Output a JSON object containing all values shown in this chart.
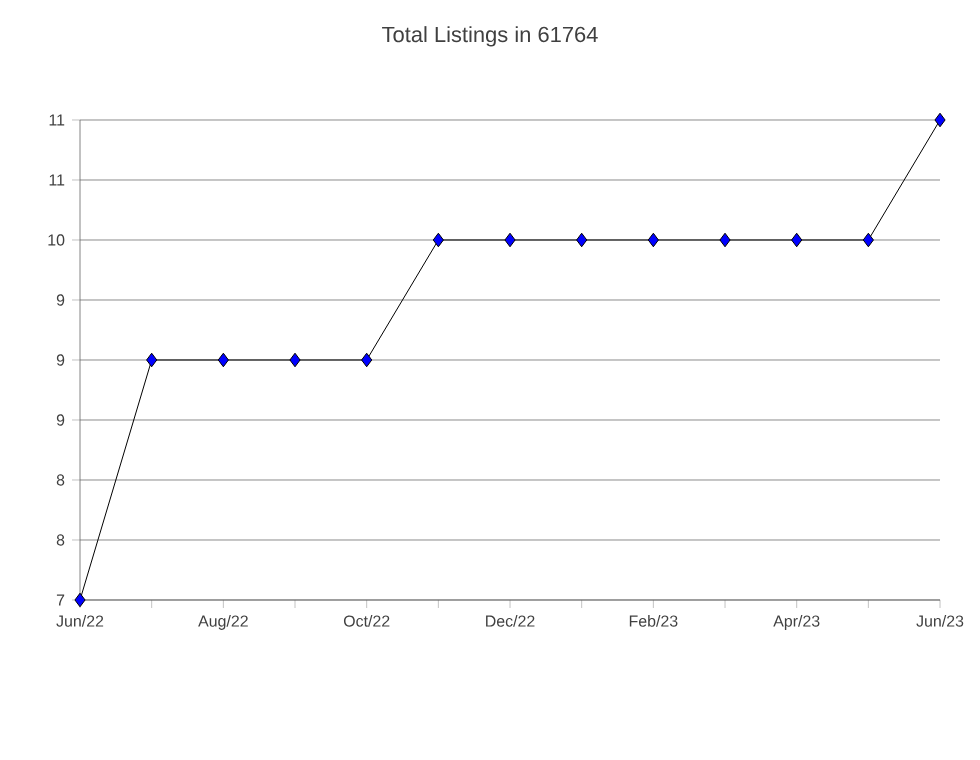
{
  "chart_data": {
    "type": "line",
    "title": "Total Listings in 61764",
    "x": [
      "2022-06",
      "2022-07",
      "2022-08",
      "2022-09",
      "2022-10",
      "2022-11",
      "2022-12",
      "2023-01",
      "2023-02",
      "2023-03",
      "2023-04",
      "2023-05",
      "2023-06"
    ],
    "series": [
      {
        "color": "#0000ff",
        "values": [
          7,
          9,
          9,
          9,
          9,
          10,
          10,
          10,
          10,
          10,
          10,
          10,
          11
        ]
      }
    ],
    "xlim": [
      "2022-06",
      "2023-06"
    ],
    "xticks": [
      {
        "value": "2022-06",
        "label": "Jun/22"
      },
      {
        "value": "2022-07",
        "label": null
      },
      {
        "value": "2022-08",
        "label": "Aug/22"
      },
      {
        "value": "2022-09",
        "label": null
      },
      {
        "value": "2022-10",
        "label": "Oct/22"
      },
      {
        "value": "2022-11",
        "label": null
      },
      {
        "value": "2022-12",
        "label": "Dec/22"
      },
      {
        "value": "2023-01",
        "label": null
      },
      {
        "value": "2023-02",
        "label": "Feb/23"
      },
      {
        "value": "2023-03",
        "label": null
      },
      {
        "value": "2023-04",
        "label": "Apr/23"
      },
      {
        "value": "2023-05",
        "label": null
      },
      {
        "value": "2023-06",
        "label": "Jun/23"
      }
    ],
    "ylim": [
      7,
      11
    ],
    "yticks": [
      7,
      {
        "value": 7.5,
        "label": "8"
      },
      8,
      {
        "value": 8.5,
        "label": "9"
      },
      9,
      {
        "value": 9.5,
        "label": "9"
      },
      10,
      {
        "value": 10.5,
        "label": "11"
      },
      11
    ],
    "grid": "y",
    "marker": "diamond",
    "line_style": "solid"
  }
}
